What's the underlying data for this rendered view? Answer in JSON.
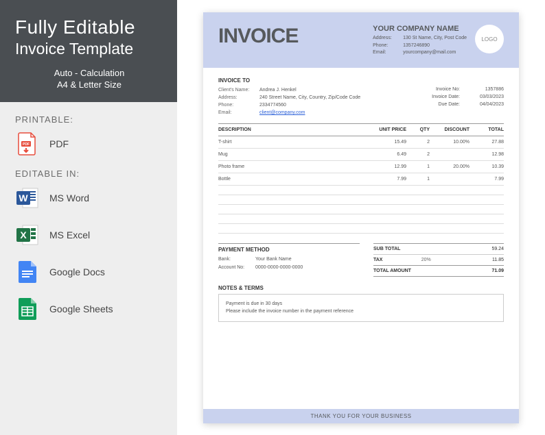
{
  "colors": {
    "sidebar_top_bg": "#4a4e52",
    "sidebar_bottom_bg": "#eeeeee",
    "invoice_accent_bg": "#c9d2ee",
    "title_color": "#56595c",
    "link_color": "#2a5fd8",
    "word_blue": "#2b579a",
    "excel_green": "#217346",
    "docs_blue": "#4285f4",
    "sheets_green": "#0f9d58",
    "pdf_red": "#e74c3c"
  },
  "sidebar": {
    "title_line1": "Fully Editable",
    "title_line2": "Invoice Template",
    "subtitle_line1": "Auto - Calculation",
    "subtitle_line2": "A4 & Letter Size",
    "printable_label": "PRINTABLE:",
    "editable_label": "EDITABLE IN:",
    "apps": {
      "pdf": "PDF",
      "word": "MS Word",
      "excel": "MS Excel",
      "docs": "Google Docs",
      "sheets": "Google Sheets"
    }
  },
  "invoice": {
    "title": "INVOICE",
    "logo_text": "LOGO",
    "company": {
      "name": "YOUR COMPANY NAME",
      "address_label": "Address:",
      "address": "130 St Name, City, Post Code",
      "phone_label": "Phone:",
      "phone": "1357246890",
      "email_label": "Email:",
      "email": "yourcompany@mail.com"
    },
    "invoice_to_label": "INVOICE TO",
    "client": {
      "name_label": "Client's Name:",
      "name": "Andrea J. Henkel",
      "address_label": "Address:",
      "address": "240 Street Name, City, Country, Zip/Code Code",
      "phone_label": "Phone:",
      "phone": "2334774560",
      "email_label": "Email:",
      "email": "client@company.com"
    },
    "meta": {
      "no_label": "Invoice No:",
      "no": "1357886",
      "date_label": "Invoice Date:",
      "date": "03/03/2023",
      "due_label": "Due Date:",
      "due": "04/04/2023"
    },
    "columns": {
      "description": "DESCRIPTION",
      "unit_price": "UNIT PRICE",
      "qty": "QTY",
      "discount": "DISCOUNT",
      "total": "TOTAL"
    },
    "items": [
      {
        "desc": "T-shirt",
        "price": "15.49",
        "qty": "2",
        "discount": "10.00%",
        "total": "27.88"
      },
      {
        "desc": "Mug",
        "price": "6.49",
        "qty": "2",
        "discount": "",
        "total": "12.98"
      },
      {
        "desc": "Photo frame",
        "price": "12.99",
        "qty": "1",
        "discount": "20.00%",
        "total": "10.39"
      },
      {
        "desc": "Bottle",
        "price": "7.99",
        "qty": "1",
        "discount": "",
        "total": "7.99"
      }
    ],
    "payment": {
      "title": "PAYMENT METHOD",
      "bank_label": "Bank:",
      "bank": "Your Bank Name",
      "account_label": "Account No:",
      "account": "0000-0000-0000-0000"
    },
    "totals": {
      "subtotal_label": "SUB TOTAL",
      "subtotal": "59.24",
      "tax_label": "TAX",
      "tax_rate": "20%",
      "tax": "11.85",
      "total_label": "TOTAL AMOUNT",
      "total": "71.09"
    },
    "notes": {
      "title": "NOTES & TERMS",
      "line1": "Payment is due in 30 days",
      "line2": "Please include the invoice number in the payment reference"
    },
    "footer": "THANK YOU FOR YOUR BUSINESS"
  }
}
